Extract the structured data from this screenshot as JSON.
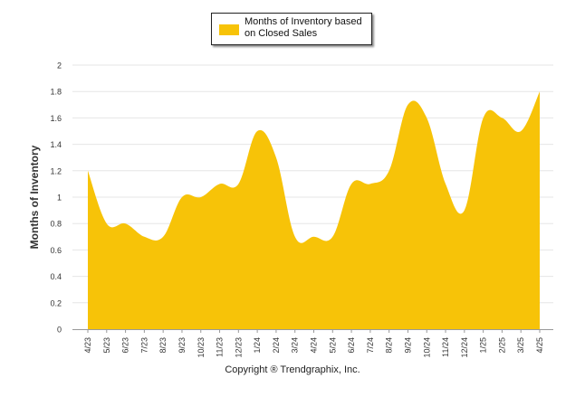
{
  "chart_data": {
    "type": "area",
    "x": [
      "4/23",
      "5/23",
      "6/23",
      "7/23",
      "8/23",
      "9/23",
      "10/23",
      "11/23",
      "12/23",
      "1/24",
      "2/24",
      "3/24",
      "4/24",
      "5/24",
      "6/24",
      "7/24",
      "8/24",
      "9/24",
      "10/24",
      "11/24",
      "12/24",
      "1/25",
      "2/25",
      "3/25",
      "4/25"
    ],
    "series": [
      {
        "name": "Months of Inventory based on Closed Sales",
        "values": [
          1.2,
          0.8,
          0.8,
          0.7,
          0.7,
          1.0,
          1.0,
          1.1,
          1.1,
          1.5,
          1.3,
          0.7,
          0.7,
          0.7,
          1.1,
          1.1,
          1.2,
          1.7,
          1.6,
          1.1,
          0.9,
          1.6,
          1.6,
          1.5,
          1.8
        ],
        "color": "#F7C308"
      }
    ],
    "ylabel": "Months of Inventory",
    "xlabel": "",
    "ylim": [
      0,
      2
    ],
    "yticks": [
      "0",
      "0.2",
      "0.4",
      "0.6",
      "0.8",
      "1",
      "1.2",
      "1.4",
      "1.6",
      "1.8",
      "2"
    ],
    "grid": true,
    "legend_position": "top-center"
  },
  "legend": {
    "label_line1": "Months of Inventory based",
    "label_line2": "on Closed Sales"
  },
  "footer": {
    "copyright": "Copyright ® Trendgraphix, Inc."
  }
}
